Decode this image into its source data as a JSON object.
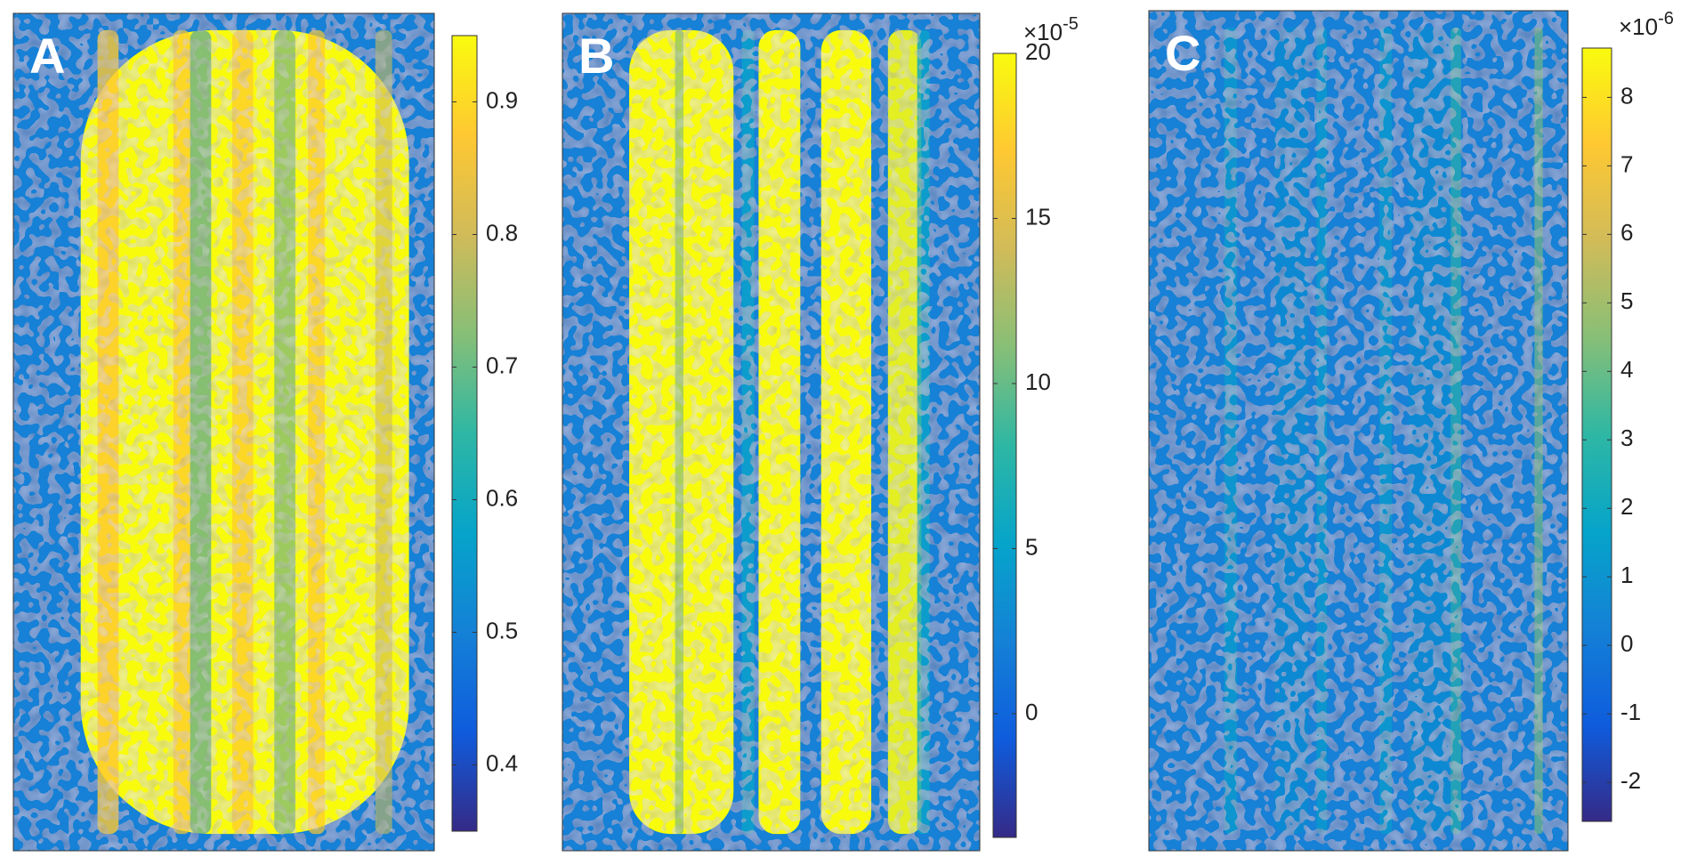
{
  "colormap": [
    "#352a87",
    "#0f5cdd",
    "#1481d6",
    "#06a4ca",
    "#2eb7a4",
    "#87bf77",
    "#d1bb59",
    "#fec832",
    "#f9fb0e"
  ],
  "chart_data": [
    {
      "type": "heatmap",
      "label": "A",
      "clim": [
        0.35,
        0.95
      ],
      "cticks": [
        0.4,
        0.5,
        0.6,
        0.7,
        0.8,
        0.9
      ]
    },
    {
      "type": "heatmap",
      "label": "B",
      "clim": [
        -3.75,
        20
      ],
      "cticks": [
        0,
        5,
        10,
        15,
        20
      ],
      "exponent_base": "×10",
      "exponent": "-5"
    },
    {
      "type": "heatmap",
      "label": "C",
      "clim": [
        -2.57,
        8.72
      ],
      "cticks": [
        -2,
        -1,
        0,
        1,
        2,
        3,
        4,
        5,
        6,
        7,
        8
      ],
      "exponent_base": "×10",
      "exponent": "-6"
    }
  ]
}
